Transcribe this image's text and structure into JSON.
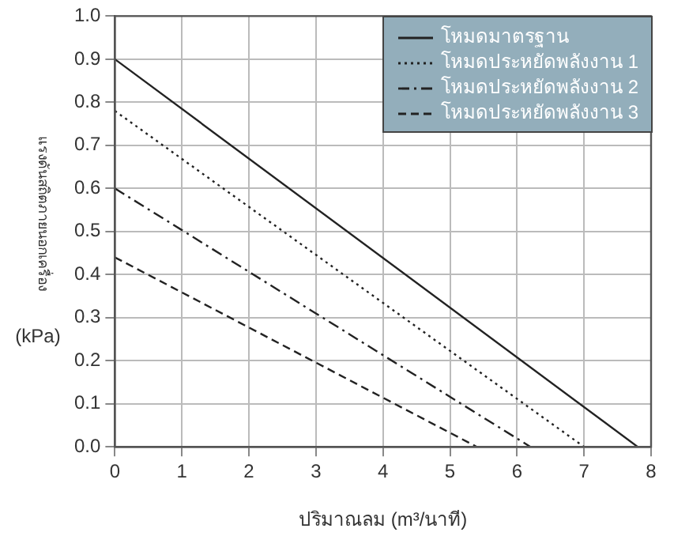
{
  "chart_data": {
    "type": "line",
    "xlabel": "ปริมาณลม (m³/นาที)",
    "ylabel": "แรงดันสถิตภายนอกเครื่อง (kPa)",
    "xlim": [
      0,
      8
    ],
    "xticks": [
      0,
      1,
      2,
      3,
      4,
      5,
      6,
      7,
      8
    ],
    "ylim": [
      0,
      1
    ],
    "yticks": [
      {
        "value": 0,
        "label": "0.0"
      },
      {
        "value": 0.1,
        "label": "0.1"
      },
      {
        "value": 0.2,
        "label": "0.2"
      },
      {
        "value": 0.3,
        "label": "0.3"
      },
      {
        "value": 0.4,
        "label": "0.4"
      },
      {
        "value": 0.5,
        "label": "0.5"
      },
      {
        "value": 0.6,
        "label": "0.6"
      },
      {
        "value": 0.7,
        "label": "0.7"
      },
      {
        "value": 0.8,
        "label": "0.8"
      },
      {
        "value": 0.9,
        "label": "0.9"
      },
      {
        "value": 1,
        "label": "1.0"
      }
    ],
    "grid": true,
    "legend": "top right",
    "marker": "none",
    "series": [
      {
        "name": "โหมดมาตรฐาน",
        "color": "#222222",
        "line_style": "solid",
        "x": [
          0,
          7.8
        ],
        "values": [
          0.9,
          0
        ]
      },
      {
        "name": "โหมดประหยัดพลังงาน 1",
        "color": "#222222",
        "line_style": "dotted",
        "x": [
          0,
          7
        ],
        "values": [
          0.78,
          0
        ]
      },
      {
        "name": "โหมดประหยัดพลังงาน 2",
        "color": "#222222",
        "line_style": "dashdot",
        "x": [
          0,
          6.2
        ],
        "values": [
          0.6,
          0
        ]
      },
      {
        "name": "โหมดประหยัดพลังงาน 3",
        "color": "#222222",
        "line_style": "dashed",
        "x": [
          0,
          5.4
        ],
        "values": [
          0.44,
          0
        ]
      }
    ]
  }
}
